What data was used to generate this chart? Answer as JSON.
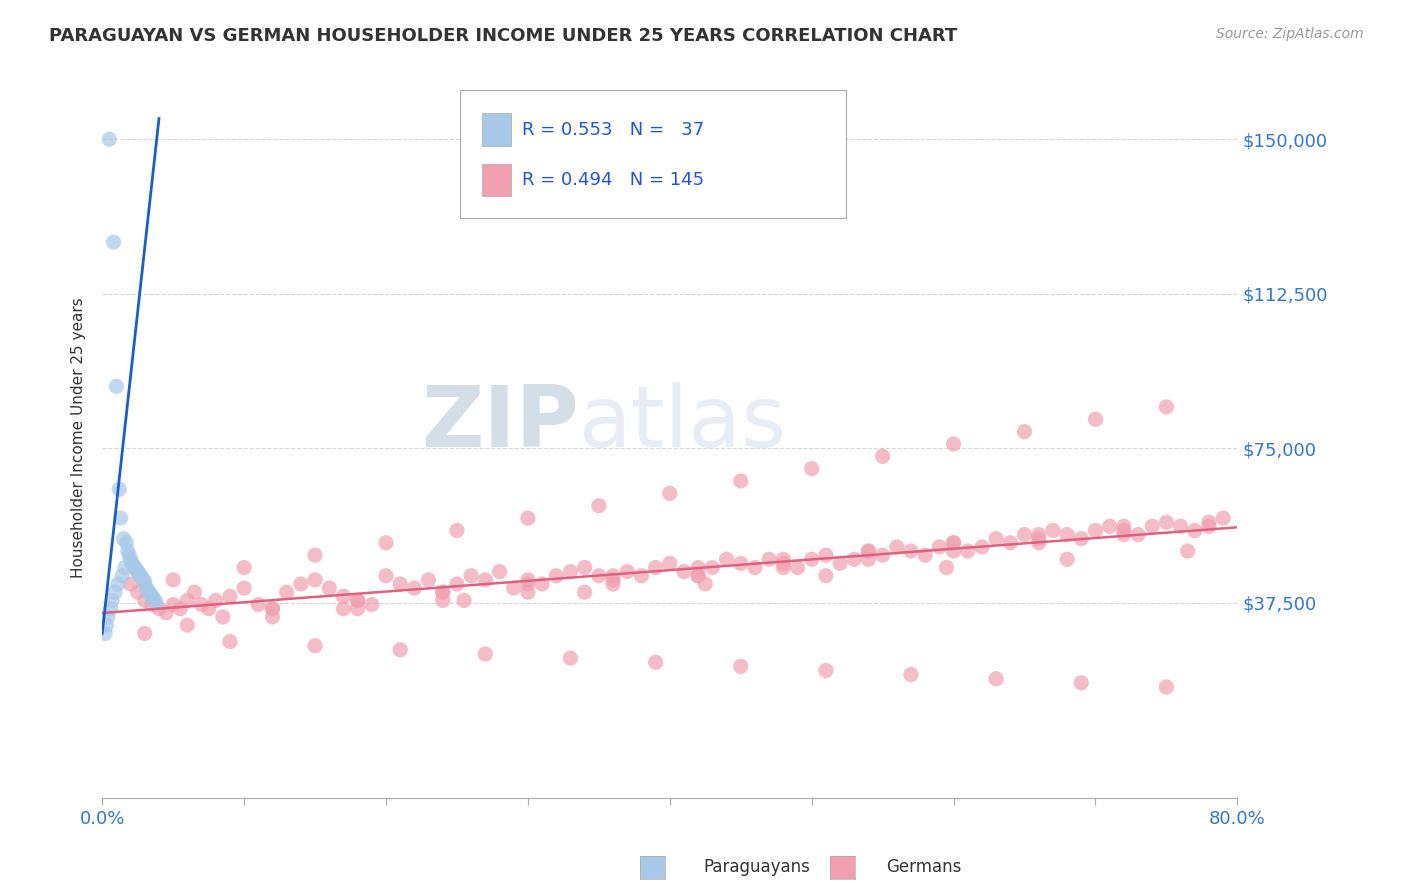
{
  "title": "PARAGUAYAN VS GERMAN HOUSEHOLDER INCOME UNDER 25 YEARS CORRELATION CHART",
  "source": "Source: ZipAtlas.com",
  "ylabel": "Householder Income Under 25 years",
  "xlim": [
    0.0,
    0.8
  ],
  "ylim": [
    -10000,
    165000
  ],
  "yticks": [
    37500,
    75000,
    112500,
    150000
  ],
  "ytick_labels": [
    "$37,500",
    "$75,000",
    "$112,500",
    "$150,000"
  ],
  "xtick_positions": [
    0.0,
    0.1,
    0.2,
    0.3,
    0.4,
    0.5,
    0.6,
    0.7,
    0.8
  ],
  "xtick_labels_show": {
    "0.0": "0.0%",
    "0.8": "80.0%"
  },
  "background_color": "#ffffff",
  "grid_color": "#cccccc",
  "paraguayan_color": "#a8c8e8",
  "german_color": "#f0a0b0",
  "paraguayan_line_color": "#1a5fc4",
  "german_line_color": "#e06080",
  "legend_r_paraguayan": "0.553",
  "legend_n_paraguayan": "37",
  "legend_r_german": "0.494",
  "legend_n_german": "145",
  "watermark_zip": "ZIP",
  "watermark_atlas": "atlas",
  "par_x": [
    0.005,
    0.008,
    0.01,
    0.012,
    0.013,
    0.015,
    0.017,
    0.018,
    0.019,
    0.02,
    0.021,
    0.022,
    0.023,
    0.024,
    0.025,
    0.026,
    0.027,
    0.028,
    0.029,
    0.03,
    0.002,
    0.003,
    0.004,
    0.006,
    0.007,
    0.009,
    0.011,
    0.014,
    0.016,
    0.031,
    0.032,
    0.033,
    0.034,
    0.035,
    0.036,
    0.037,
    0.038
  ],
  "par_y": [
    150000,
    125000,
    90000,
    65000,
    58000,
    53000,
    52000,
    50000,
    49000,
    48000,
    47000,
    46500,
    46000,
    45500,
    45000,
    44500,
    44000,
    43500,
    43000,
    42500,
    30000,
    32000,
    34000,
    36000,
    38000,
    40000,
    42000,
    44000,
    46000,
    41000,
    40500,
    40000,
    39500,
    39000,
    38500,
    38000,
    37500
  ],
  "ger_x": [
    0.02,
    0.025,
    0.03,
    0.035,
    0.04,
    0.045,
    0.05,
    0.055,
    0.06,
    0.065,
    0.07,
    0.075,
    0.08,
    0.09,
    0.1,
    0.11,
    0.12,
    0.13,
    0.14,
    0.15,
    0.16,
    0.17,
    0.18,
    0.19,
    0.2,
    0.21,
    0.22,
    0.23,
    0.24,
    0.25,
    0.26,
    0.27,
    0.28,
    0.29,
    0.3,
    0.31,
    0.32,
    0.33,
    0.34,
    0.35,
    0.36,
    0.37,
    0.38,
    0.39,
    0.4,
    0.41,
    0.42,
    0.43,
    0.44,
    0.45,
    0.46,
    0.47,
    0.48,
    0.49,
    0.5,
    0.51,
    0.52,
    0.53,
    0.54,
    0.55,
    0.56,
    0.57,
    0.58,
    0.59,
    0.6,
    0.61,
    0.62,
    0.63,
    0.64,
    0.65,
    0.66,
    0.67,
    0.68,
    0.69,
    0.7,
    0.71,
    0.72,
    0.73,
    0.74,
    0.75,
    0.76,
    0.77,
    0.78,
    0.79,
    0.05,
    0.1,
    0.15,
    0.2,
    0.25,
    0.3,
    0.35,
    0.4,
    0.45,
    0.5,
    0.55,
    0.6,
    0.65,
    0.7,
    0.75,
    0.12,
    0.18,
    0.24,
    0.3,
    0.36,
    0.42,
    0.48,
    0.54,
    0.6,
    0.66,
    0.72,
    0.085,
    0.17,
    0.255,
    0.34,
    0.425,
    0.51,
    0.595,
    0.68,
    0.765,
    0.06,
    0.12,
    0.18,
    0.24,
    0.3,
    0.36,
    0.42,
    0.48,
    0.54,
    0.6,
    0.66,
    0.72,
    0.78,
    0.03,
    0.09,
    0.15,
    0.21,
    0.27,
    0.33,
    0.39,
    0.45,
    0.51,
    0.57,
    0.63,
    0.69,
    0.75
  ],
  "ger_y": [
    42000,
    40000,
    38000,
    37000,
    36000,
    35000,
    37000,
    36000,
    38000,
    40000,
    37000,
    36000,
    38000,
    39000,
    41000,
    37000,
    36000,
    40000,
    42000,
    43000,
    41000,
    39000,
    38000,
    37000,
    44000,
    42000,
    41000,
    43000,
    40000,
    42000,
    44000,
    43000,
    45000,
    41000,
    43000,
    42000,
    44000,
    45000,
    46000,
    44000,
    43000,
    45000,
    44000,
    46000,
    47000,
    45000,
    44000,
    46000,
    48000,
    47000,
    46000,
    48000,
    47000,
    46000,
    48000,
    49000,
    47000,
    48000,
    50000,
    49000,
    51000,
    50000,
    49000,
    51000,
    52000,
    50000,
    51000,
    53000,
    52000,
    54000,
    53000,
    55000,
    54000,
    53000,
    55000,
    56000,
    55000,
    54000,
    56000,
    57000,
    56000,
    55000,
    57000,
    58000,
    43000,
    46000,
    49000,
    52000,
    55000,
    58000,
    61000,
    64000,
    67000,
    70000,
    73000,
    76000,
    79000,
    82000,
    85000,
    36000,
    38000,
    40000,
    42000,
    44000,
    46000,
    48000,
    50000,
    52000,
    54000,
    56000,
    34000,
    36000,
    38000,
    40000,
    42000,
    44000,
    46000,
    48000,
    50000,
    32000,
    34000,
    36000,
    38000,
    40000,
    42000,
    44000,
    46000,
    48000,
    50000,
    52000,
    54000,
    56000,
    30000,
    28000,
    27000,
    26000,
    25000,
    24000,
    23000,
    22000,
    21000,
    20000,
    19000,
    18000,
    17000
  ]
}
